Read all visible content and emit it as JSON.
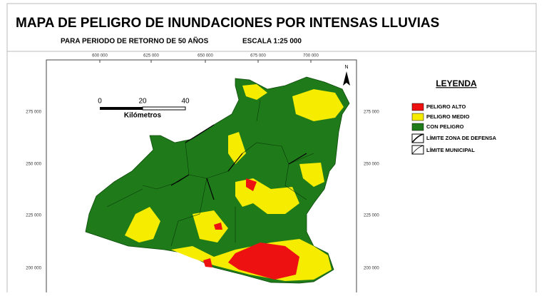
{
  "header": {
    "title": "MAPA DE PELIGRO DE INUNDACIONES POR INTENSAS LLUVIAS",
    "subtitle": "PARA PERIODO DE RETORNO DE 50 AÑOS",
    "scale": "ESCALA 1:25 000"
  },
  "map": {
    "top_coords": [
      "600 000",
      "625 000",
      "650 000",
      "675 000",
      "700 000"
    ],
    "left_coords": [
      "275 000",
      "250 000",
      "225 000",
      "200 000"
    ],
    "right_coords": [
      "275 000",
      "250 000",
      "225 000",
      "200 000"
    ],
    "north": "N",
    "scale_bar": {
      "labels": [
        "0",
        "20",
        "40"
      ],
      "unit": "Kilómetros"
    }
  },
  "legend": {
    "title": "LEYENDA",
    "items": [
      "PELIGRO ALTO",
      "PELIGRO MEDIO",
      "CON PELIGRO",
      "LÍMITE ZONA DE DEFENSA",
      "LÍMITE MUNICIPAL"
    ]
  }
}
